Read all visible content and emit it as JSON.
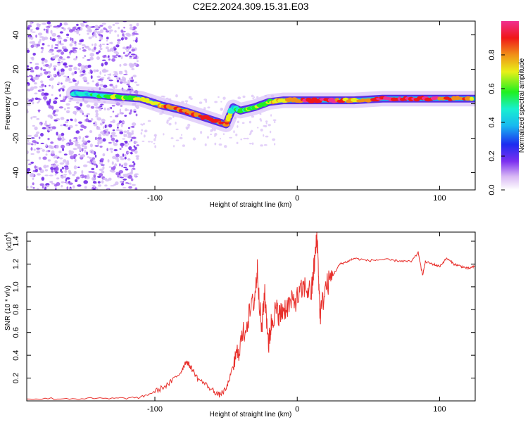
{
  "title": "C2E2.2024.309.15.31.E03",
  "chart_data": [
    {
      "type": "heatmap",
      "title": "C2E2.2024.309.15.31.E03",
      "xlabel": "Height of straight line (km)",
      "ylabel": "Frequency (Hz)",
      "xlim": [
        -190,
        125
      ],
      "ylim": [
        -50,
        48
      ],
      "x_ticks": [
        -100,
        0,
        100
      ],
      "x_tick_labels": [
        "-100",
        "0",
        "100"
      ],
      "y_ticks": [
        -40,
        -20,
        0,
        20,
        40
      ],
      "y_tick_labels": [
        "-40",
        "-20",
        "0",
        "20",
        "40"
      ],
      "colorbar": {
        "label": "Normalized spectral amplitude",
        "range": [
          0,
          1
        ],
        "ticks": [
          0.0,
          0.2,
          0.4,
          0.6,
          0.8
        ],
        "tick_labels": [
          "0.0",
          "0.2",
          "0.4",
          "0.6",
          "0.8"
        ]
      },
      "noise_region_x": [
        -190,
        -112
      ],
      "ridge": {
        "x": [
          -157,
          -140,
          -125,
          -110,
          -95,
          -80,
          -65,
          -50,
          -45,
          -40,
          -30,
          -20,
          -10,
          0,
          20,
          40,
          60,
          80,
          100,
          125
        ],
        "freq": [
          6,
          5,
          4,
          3,
          -1,
          -4,
          -8,
          -12,
          -2,
          -4,
          -2,
          1,
          2,
          2,
          2,
          2,
          3,
          3,
          3,
          3
        ],
        "amplitude": [
          0.35,
          0.45,
          0.55,
          0.6,
          0.75,
          0.8,
          0.8,
          0.8,
          0.4,
          0.5,
          0.55,
          0.6,
          0.7,
          0.8,
          0.95,
          0.65,
          0.95,
          0.9,
          0.85,
          0.75
        ]
      }
    },
    {
      "type": "line",
      "xlabel": "Height of straight line (km)",
      "ylabel": "SNR (10 * v/v)",
      "y_scale_label": "(x10",
      "y_scale_exponent": "4",
      "y_scale_suffix": ")",
      "xlim": [
        -190,
        125
      ],
      "ylim": [
        0,
        1.48
      ],
      "x_ticks": [
        -100,
        0,
        100
      ],
      "x_tick_labels": [
        "-100",
        "0",
        "100"
      ],
      "y_ticks": [
        0.2,
        0.4,
        0.6,
        0.8,
        1.0,
        1.2,
        1.4
      ],
      "y_tick_labels": [
        "0.2",
        "0.4",
        "0.6",
        "0.8",
        "1.0",
        "1.2",
        "1.4"
      ],
      "series": [
        {
          "name": "SNR",
          "color": "#e8302c",
          "x": [
            -190,
            -160,
            -130,
            -110,
            -100,
            -90,
            -82,
            -78,
            -75,
            -70,
            -60,
            -55,
            -50,
            -45,
            -40,
            -35,
            -30,
            -28,
            -25,
            -23,
            -20,
            -18,
            -15,
            -12,
            -10,
            -5,
            0,
            5,
            10,
            12,
            14,
            16,
            20,
            25,
            30,
            35,
            40,
            50,
            60,
            70,
            80,
            85,
            88,
            90,
            95,
            100,
            105,
            110,
            115,
            120,
            125
          ],
          "y": [
            0.02,
            0.02,
            0.02,
            0.03,
            0.08,
            0.15,
            0.25,
            0.35,
            0.3,
            0.2,
            0.1,
            0.05,
            0.1,
            0.3,
            0.5,
            0.7,
            0.9,
            1.15,
            0.6,
            0.95,
            0.5,
            0.7,
            0.8,
            0.75,
            0.8,
            0.85,
            0.9,
            1.0,
            0.95,
            1.2,
            1.45,
            0.75,
            1.0,
            1.1,
            1.2,
            1.22,
            1.25,
            1.23,
            1.24,
            1.23,
            1.22,
            1.3,
            1.1,
            1.22,
            1.2,
            1.18,
            1.25,
            1.2,
            1.18,
            1.16,
            1.18
          ]
        }
      ]
    }
  ]
}
